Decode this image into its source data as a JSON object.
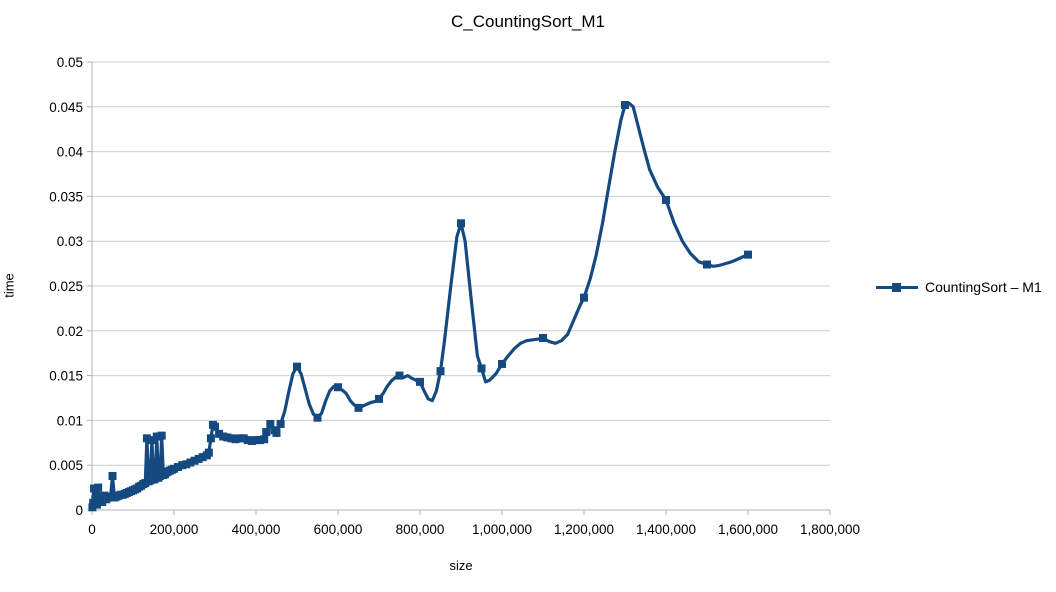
{
  "title": "C_CountingSort_M1",
  "legend": {
    "label": "CountingSort – M1"
  },
  "axes": {
    "x": {
      "label": "size",
      "min": 0,
      "max": 1800000,
      "tick_step": 200000,
      "tick_labels": [
        "0",
        "200,000",
        "400,000",
        "600,000",
        "800,000",
        "1,000,000",
        "1,200,000",
        "1,400,000",
        "1,600,000",
        "1,800,000"
      ]
    },
    "y": {
      "label": "time",
      "min": 0,
      "max": 0.05,
      "tick_step": 0.005,
      "tick_labels": [
        "0",
        "0.005",
        "0.01",
        "0.015",
        "0.02",
        "0.025",
        "0.03",
        "0.035",
        "0.04",
        "0.045",
        "0.05"
      ]
    }
  },
  "colors": {
    "series": "#154a80",
    "grid": "#cccccc",
    "axis": "#b3b3b3",
    "text": "#000000"
  },
  "chart_data": {
    "type": "line",
    "title": "C_CountingSort_M1",
    "xlabel": "size",
    "ylabel": "time",
    "xlim": [
      0,
      1800000
    ],
    "ylim": [
      0,
      0.05
    ],
    "grid": true,
    "legend_position": "right",
    "series": [
      {
        "name": "CountingSort – M1",
        "marker": "square",
        "points_format": "[size, time, has_marker]",
        "points": [
          [
            1000,
            0.0003,
            1
          ],
          [
            3000,
            0.0008,
            1
          ],
          [
            5000,
            0.0024,
            1
          ],
          [
            8000,
            0.0012,
            1
          ],
          [
            10000,
            0.0022,
            1
          ],
          [
            12000,
            0.0006,
            1
          ],
          [
            15000,
            0.0025,
            1
          ],
          [
            18000,
            0.001,
            1
          ],
          [
            20000,
            0.0013,
            1
          ],
          [
            25000,
            0.0009,
            1
          ],
          [
            30000,
            0.0016,
            1
          ],
          [
            35000,
            0.0012,
            1
          ],
          [
            40000,
            0.0015,
            1
          ],
          [
            45000,
            0.0014,
            1
          ],
          [
            50000,
            0.0038,
            1
          ],
          [
            55000,
            0.0014,
            1
          ],
          [
            60000,
            0.0015,
            1
          ],
          [
            65000,
            0.0016,
            1
          ],
          [
            70000,
            0.0017,
            1
          ],
          [
            75000,
            0.0017,
            1
          ],
          [
            80000,
            0.0018,
            1
          ],
          [
            85000,
            0.0019,
            1
          ],
          [
            90000,
            0.002,
            1
          ],
          [
            95000,
            0.0021,
            1
          ],
          [
            100000,
            0.0022,
            1
          ],
          [
            105000,
            0.0023,
            1
          ],
          [
            110000,
            0.0024,
            1
          ],
          [
            115000,
            0.0026,
            1
          ],
          [
            120000,
            0.0027,
            1
          ],
          [
            125000,
            0.0029,
            1
          ],
          [
            130000,
            0.003,
            1
          ],
          [
            134000,
            0.008,
            1
          ],
          [
            138000,
            0.0032,
            1
          ],
          [
            142000,
            0.0033,
            1
          ],
          [
            146000,
            0.0078,
            1
          ],
          [
            150000,
            0.0034,
            1
          ],
          [
            154000,
            0.0035,
            1
          ],
          [
            158000,
            0.0082,
            1
          ],
          [
            162000,
            0.0036,
            1
          ],
          [
            166000,
            0.0038,
            1
          ],
          [
            170000,
            0.0083,
            1
          ],
          [
            174000,
            0.0039,
            1
          ],
          [
            178000,
            0.004,
            1
          ],
          [
            182000,
            0.0042,
            1
          ],
          [
            186000,
            0.0043,
            1
          ],
          [
            190000,
            0.0044,
            1
          ],
          [
            195000,
            0.0045,
            1
          ],
          [
            200000,
            0.0046,
            1
          ],
          [
            210000,
            0.0048,
            1
          ],
          [
            220000,
            0.005,
            1
          ],
          [
            230000,
            0.0051,
            1
          ],
          [
            240000,
            0.0053,
            1
          ],
          [
            250000,
            0.0055,
            1
          ],
          [
            260000,
            0.0057,
            1
          ],
          [
            270000,
            0.0059,
            1
          ],
          [
            280000,
            0.0061,
            1
          ],
          [
            285000,
            0.0064,
            1
          ],
          [
            290000,
            0.008,
            1
          ],
          [
            295000,
            0.0095,
            1
          ],
          [
            300000,
            0.0093,
            1
          ],
          [
            310000,
            0.0085,
            1
          ],
          [
            320000,
            0.0082,
            1
          ],
          [
            330000,
            0.0081,
            1
          ],
          [
            340000,
            0.008,
            1
          ],
          [
            350000,
            0.0079,
            1
          ],
          [
            360000,
            0.008,
            1
          ],
          [
            370000,
            0.008,
            1
          ],
          [
            380000,
            0.0078,
            1
          ],
          [
            390000,
            0.0077,
            1
          ],
          [
            400000,
            0.0078,
            1
          ],
          [
            410000,
            0.0078,
            1
          ],
          [
            420000,
            0.0079,
            1
          ],
          [
            425000,
            0.0087,
            1
          ],
          [
            435000,
            0.0096,
            1
          ],
          [
            445000,
            0.0089,
            1
          ],
          [
            450000,
            0.0086,
            1
          ],
          [
            460000,
            0.0096,
            1
          ],
          [
            470000,
            0.011,
            0
          ],
          [
            480000,
            0.0132,
            0
          ],
          [
            490000,
            0.0152,
            0
          ],
          [
            500000,
            0.016,
            1
          ],
          [
            510000,
            0.0152,
            0
          ],
          [
            520000,
            0.0135,
            0
          ],
          [
            530000,
            0.0118,
            0
          ],
          [
            540000,
            0.0107,
            0
          ],
          [
            550000,
            0.0103,
            1
          ],
          [
            560000,
            0.0108,
            0
          ],
          [
            570000,
            0.0122,
            0
          ],
          [
            580000,
            0.0133,
            0
          ],
          [
            590000,
            0.0138,
            0
          ],
          [
            600000,
            0.0137,
            1
          ],
          [
            610000,
            0.0134,
            0
          ],
          [
            620000,
            0.013,
            0
          ],
          [
            630000,
            0.0122,
            0
          ],
          [
            640000,
            0.0117,
            0
          ],
          [
            650000,
            0.0114,
            1
          ],
          [
            660000,
            0.0116,
            0
          ],
          [
            670000,
            0.0118,
            0
          ],
          [
            680000,
            0.012,
            0
          ],
          [
            690000,
            0.0121,
            0
          ],
          [
            700000,
            0.0124,
            1
          ],
          [
            710000,
            0.013,
            0
          ],
          [
            720000,
            0.0138,
            0
          ],
          [
            730000,
            0.0144,
            0
          ],
          [
            740000,
            0.0148,
            0
          ],
          [
            750000,
            0.015,
            1
          ],
          [
            760000,
            0.0148,
            0
          ],
          [
            770000,
            0.015,
            0
          ],
          [
            780000,
            0.0147,
            0
          ],
          [
            790000,
            0.0145,
            0
          ],
          [
            800000,
            0.0143,
            1
          ],
          [
            810000,
            0.0133,
            0
          ],
          [
            820000,
            0.0124,
            0
          ],
          [
            830000,
            0.0122,
            0
          ],
          [
            840000,
            0.0133,
            0
          ],
          [
            850000,
            0.0155,
            1
          ],
          [
            860000,
            0.019,
            0
          ],
          [
            875000,
            0.025,
            0
          ],
          [
            890000,
            0.0305,
            0
          ],
          [
            900000,
            0.032,
            1
          ],
          [
            910000,
            0.03,
            0
          ],
          [
            925000,
            0.0235,
            0
          ],
          [
            940000,
            0.0172,
            0
          ],
          [
            950000,
            0.0158,
            1
          ],
          [
            960000,
            0.0143,
            0
          ],
          [
            970000,
            0.0145,
            0
          ],
          [
            985000,
            0.0152,
            0
          ],
          [
            1000000,
            0.0163,
            1
          ],
          [
            1015000,
            0.0172,
            0
          ],
          [
            1030000,
            0.018,
            0
          ],
          [
            1045000,
            0.0186,
            0
          ],
          [
            1060000,
            0.0189,
            0
          ],
          [
            1075000,
            0.019,
            0
          ],
          [
            1090000,
            0.0191,
            0
          ],
          [
            1100000,
            0.0192,
            1
          ],
          [
            1115000,
            0.0188,
            0
          ],
          [
            1130000,
            0.0186,
            0
          ],
          [
            1145000,
            0.0189,
            0
          ],
          [
            1160000,
            0.0196,
            0
          ],
          [
            1175000,
            0.0212,
            0
          ],
          [
            1190000,
            0.0228,
            0
          ],
          [
            1200000,
            0.0237,
            1
          ],
          [
            1215000,
            0.0258,
            0
          ],
          [
            1230000,
            0.0285,
            0
          ],
          [
            1245000,
            0.032,
            0
          ],
          [
            1260000,
            0.036,
            0
          ],
          [
            1275000,
            0.04,
            0
          ],
          [
            1290000,
            0.0435,
            0
          ],
          [
            1300000,
            0.0452,
            1
          ],
          [
            1310000,
            0.0454,
            0
          ],
          [
            1320000,
            0.045,
            0
          ],
          [
            1330000,
            0.0432,
            0
          ],
          [
            1345000,
            0.0405,
            0
          ],
          [
            1360000,
            0.038,
            0
          ],
          [
            1380000,
            0.036,
            0
          ],
          [
            1400000,
            0.0346,
            1
          ],
          [
            1420000,
            0.032,
            0
          ],
          [
            1440000,
            0.03,
            0
          ],
          [
            1460000,
            0.0286,
            0
          ],
          [
            1480000,
            0.0277,
            0
          ],
          [
            1500000,
            0.0274,
            1
          ],
          [
            1515000,
            0.0272,
            0
          ],
          [
            1530000,
            0.0273,
            0
          ],
          [
            1545000,
            0.0275,
            0
          ],
          [
            1560000,
            0.0277,
            0
          ],
          [
            1575000,
            0.028,
            0
          ],
          [
            1590000,
            0.0283,
            0
          ],
          [
            1600000,
            0.0285,
            1
          ]
        ]
      }
    ]
  }
}
